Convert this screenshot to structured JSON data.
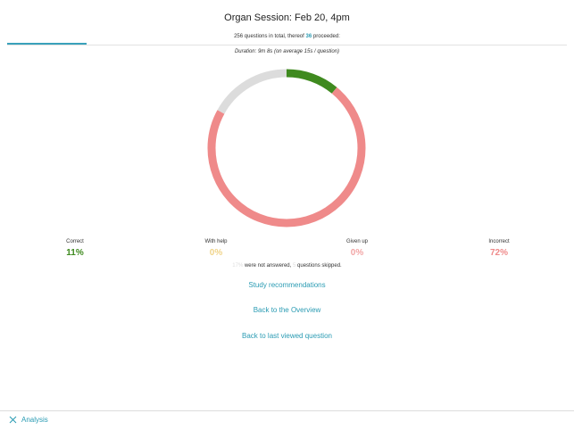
{
  "header": {
    "title": "Organ Session: Feb 20, 4pm",
    "questions_prefix": "256 questions in total, thereof",
    "proceeded_count": "36",
    "questions_suffix": "proceeded:",
    "duration": "Duration: 9m 8s (on average 15s / question)"
  },
  "colors": {
    "correct": "#3f8a1f",
    "incorrect": "#ef8a8a",
    "unanswered": "#dcdcdc",
    "with_help": "#f0d48a",
    "given_up": "#f2a6a6",
    "accent": "#2a9bb3"
  },
  "donut": {
    "correct": 11,
    "incorrect": 72,
    "unanswered": 17
  },
  "stats": [
    {
      "label": "Correct",
      "value": "11%"
    },
    {
      "label": "With help",
      "value": "0%"
    },
    {
      "label": "Given up",
      "value": "0%"
    },
    {
      "label": "Incorrect",
      "value": "72%"
    }
  ],
  "note": {
    "unanswered": "17%",
    "text1": "were not answered,",
    "skipped": "5",
    "text2": "questions skipped."
  },
  "links": {
    "study": "Study recommendations",
    "overview": "Back to the Overview",
    "last": "Back to last viewed question"
  },
  "footer": {
    "label": "Analysis"
  }
}
